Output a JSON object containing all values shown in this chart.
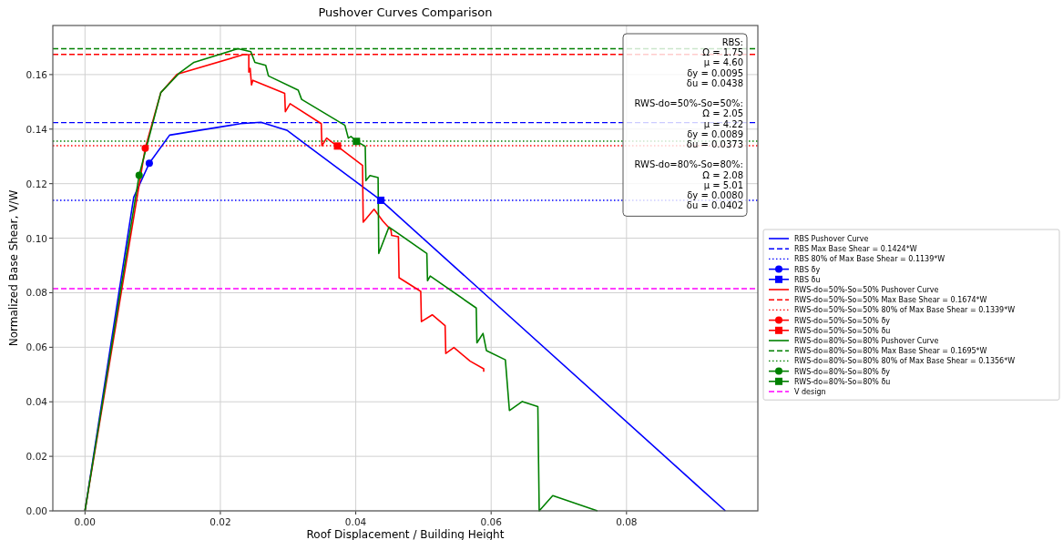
{
  "chart_data": {
    "type": "line",
    "title": "Pushover Curves Comparison",
    "xlabel": "Roof Displacement / Building Height",
    "ylabel": "Normalized Base Shear, V/W",
    "xlim": [
      -0.00475,
      0.0994
    ],
    "ylim": [
      0,
      0.178
    ],
    "xticks": [
      {
        "value": 0,
        "label": "0.00"
      },
      0.02,
      0.04,
      0.06,
      0.08
    ],
    "yticks": [
      {
        "value": 0,
        "label": "0.00"
      },
      0.02,
      0.04,
      0.06,
      0.08,
      {
        "value": 0.1,
        "label": "0.10"
      },
      0.12,
      0.14,
      0.16
    ],
    "grid": true,
    "legend": "right",
    "line_style": "solid",
    "series": [
      {
        "type": "line",
        "name": "RBS Pushover Curve",
        "color": "#0000ff",
        "x": [
          0,
          0.0072,
          0.0095,
          0.0125,
          0.023,
          0.026,
          0.0299,
          0.0329,
          0.0437,
          0.0946
        ],
        "values": [
          0,
          0.115,
          0.1275,
          0.1378,
          0.142,
          0.1425,
          0.1395,
          0.1339,
          0.1139,
          0
        ]
      },
      {
        "type": "scatter",
        "marker": "circle",
        "name": "RBS δy",
        "color": "#0000ff",
        "x": [
          0.0095
        ],
        "values": [
          0.1275
        ]
      },
      {
        "type": "scatter",
        "marker": "square",
        "name": "RBS δu",
        "color": "#0000ff",
        "x": [
          0.0437
        ],
        "values": [
          0.1139
        ]
      },
      {
        "type": "line",
        "name": "RWS-do=50%-So=50% Pushover Curve",
        "color": "#ff0000",
        "x": [
          0,
          0.0089,
          0.0112,
          0.0136,
          0.0234,
          0.0242,
          0.0242,
          0.0244,
          0.0246,
          0.0248,
          0.0295,
          0.0296,
          0.0303,
          0.0349,
          0.035,
          0.0357,
          0.041,
          0.0411,
          0.0427,
          0.044,
          0.0452,
          0.0453,
          0.0463,
          0.0464,
          0.0496,
          0.0497,
          0.0513,
          0.0532,
          0.0533,
          0.0545,
          0.0569,
          0.0589,
          0.0589
        ],
        "values": [
          0,
          0.133,
          0.1534,
          0.1601,
          0.1673,
          0.1673,
          0.1609,
          0.1623,
          0.1562,
          0.1579,
          0.1531,
          0.1464,
          0.1493,
          0.142,
          0.1339,
          0.1367,
          0.1267,
          0.1059,
          0.1106,
          0.1063,
          0.103,
          0.101,
          0.1005,
          0.0855,
          0.0805,
          0.0694,
          0.0719,
          0.0679,
          0.0577,
          0.0599,
          0.0549,
          0.0521,
          0.051
        ]
      },
      {
        "type": "scatter",
        "marker": "circle",
        "name": "RWS-do=50%-So=50% δy",
        "color": "#ff0000",
        "x": [
          0.0089
        ],
        "values": [
          0.133
        ]
      },
      {
        "type": "scatter",
        "marker": "square",
        "name": "RWS-do=50%-So=50% δu",
        "color": "#ff0000",
        "x": [
          0.0373
        ],
        "values": [
          0.1338
        ]
      },
      {
        "type": "line",
        "name": "RWS-do=80%-So=80% Pushover Curve",
        "color": "#008000",
        "x": [
          0,
          0.008,
          0.0112,
          0.014,
          0.0161,
          0.0226,
          0.0245,
          0.0251,
          0.0267,
          0.0271,
          0.0315,
          0.032,
          0.0384,
          0.0389,
          0.0393,
          0.0401,
          0.0414,
          0.0415,
          0.0421,
          0.0433,
          0.0434,
          0.0449,
          0.0505,
          0.0506,
          0.051,
          0.0578,
          0.0579,
          0.0588,
          0.0593,
          0.0621,
          0.0627,
          0.0646,
          0.0669,
          0.0671,
          0.0691,
          0.0757
        ],
        "values": [
          0,
          0.1231,
          0.1534,
          0.1607,
          0.1645,
          0.1695,
          0.1684,
          0.1645,
          0.1634,
          0.1595,
          0.1543,
          0.1509,
          0.1414,
          0.1367,
          0.1373,
          0.1355,
          0.1337,
          0.1211,
          0.123,
          0.1222,
          0.0944,
          0.1041,
          0.0944,
          0.0844,
          0.0861,
          0.0744,
          0.0616,
          0.0651,
          0.0588,
          0.0554,
          0.0368,
          0.0401,
          0.0382,
          0,
          0.0056,
          0
        ]
      },
      {
        "type": "scatter",
        "marker": "circle",
        "name": "RWS-do=80%-So=80% δy",
        "color": "#008000",
        "x": [
          0.008
        ],
        "values": [
          0.1231
        ]
      },
      {
        "type": "scatter",
        "marker": "square",
        "name": "RWS-do=80%-So=80% δu",
        "color": "#008000",
        "x": [
          0.0401
        ],
        "values": [
          0.1355
        ]
      }
    ],
    "ref_lines": [
      {
        "axis": "y",
        "value": 0.1424,
        "label": "RBS Max Base Shear = 0.1424*W",
        "color": "#0000ff",
        "line_style": "dashed"
      },
      {
        "axis": "y",
        "value": 0.1139,
        "label": "RBS 80% of Max Base Shear = 0.1139*W",
        "color": "#0000ff",
        "line_style": "dotted"
      },
      {
        "axis": "y",
        "value": 0.1674,
        "label": "RWS-do=50%-So=50% Max Base Shear = 0.1674*W",
        "color": "#ff0000",
        "line_style": "dashed"
      },
      {
        "axis": "y",
        "value": 0.1339,
        "label": "RWS-do=50%-So=50% 80% of Max Base Shear = 0.1339*W",
        "color": "#ff0000",
        "line_style": "dotted"
      },
      {
        "axis": "y",
        "value": 0.1695,
        "label": "RWS-do=80%-So=80% Max Base Shear = 0.1695*W",
        "color": "#008000",
        "line_style": "dashed"
      },
      {
        "axis": "y",
        "value": 0.1356,
        "label": "RWS-do=80%-So=80% 80% of Max Base Shear = 0.1356*W",
        "color": "#008000",
        "line_style": "dotted"
      },
      {
        "axis": "y",
        "value": 0.0815,
        "label": "V design",
        "color": "#ff00ff",
        "line_style": "dashed"
      }
    ],
    "annotations": [
      "RBS:\nΩ = 1.75\nμ = 4.60\nδy = 0.0095\nδu = 0.0438",
      "RWS-do=50%-So=50%:\nΩ = 2.05\nμ = 4.22\nδy = 0.0089\nδu = 0.0373",
      "RWS-do=80%-So=80%:\nΩ = 2.08\nμ = 5.01\nδy = 0.0080\nδu = 0.0402"
    ]
  }
}
